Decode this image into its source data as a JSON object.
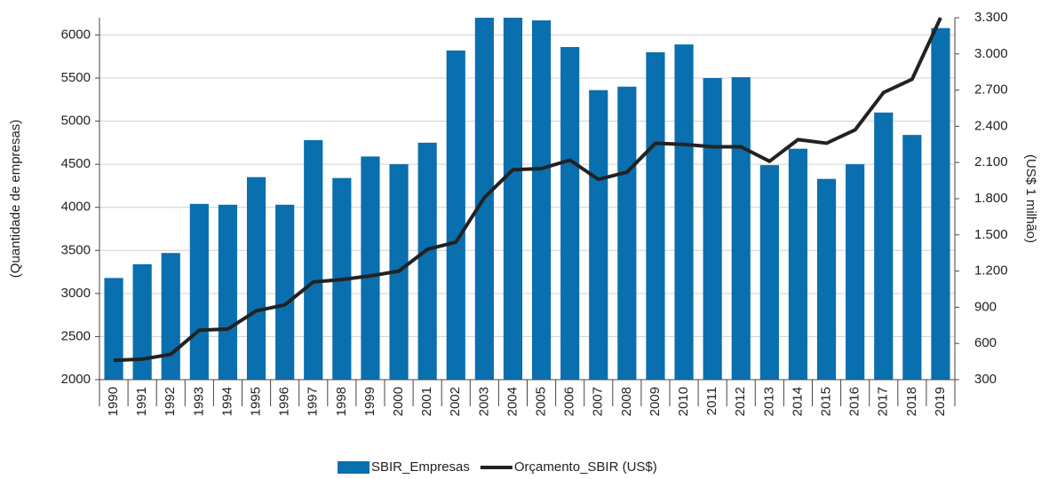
{
  "chart_data": {
    "type": "bar_line",
    "y_label": "(Quantidade de empresas)",
    "y2_label": "(US$ 1 milhão)",
    "categories": [
      "1990",
      "1991",
      "1992",
      "1993",
      "1994",
      "1995",
      "1996",
      "1997",
      "1998",
      "1999",
      "2000",
      "2001",
      "2002",
      "2003",
      "2004",
      "2005",
      "2006",
      "2007",
      "2008",
      "2009",
      "2010",
      "2011",
      "2012",
      "2013",
      "2014",
      "2015",
      "2016",
      "2017",
      "2018",
      "2019"
    ],
    "series": [
      {
        "name": "SBIR_Empresas",
        "type": "bar",
        "color": "#0a6fae",
        "values": [
          3180,
          3340,
          3470,
          4040,
          4030,
          4350,
          4030,
          4780,
          4340,
          4590,
          4500,
          4750,
          5820,
          6200,
          6200,
          6170,
          5860,
          5360,
          5400,
          5800,
          5890,
          5500,
          5510,
          4490,
          4680,
          4330,
          4500,
          5100,
          4840,
          6080
        ]
      },
      {
        "name": "Orçamento_SBIR (US$)",
        "type": "line",
        "axis": "y2",
        "color": "#222222",
        "values": [
          460,
          470,
          510,
          710,
          720,
          870,
          920,
          1110,
          1130,
          1160,
          1200,
          1380,
          1440,
          1810,
          2040,
          2050,
          2120,
          1960,
          2020,
          2260,
          2250,
          2230,
          2230,
          2110,
          2290,
          2260,
          2370,
          2680,
          2790,
          3300
        ]
      }
    ],
    "ylim": [
      2000,
      6200
    ],
    "yticks": [
      2000,
      2500,
      3000,
      3500,
      4000,
      4500,
      5000,
      5500,
      6000
    ],
    "y2lim": [
      300,
      3300
    ],
    "y2ticks": [
      300,
      600,
      900,
      {
        "value": 1200,
        "label": "1.200"
      },
      {
        "value": 1500,
        "label": "1.500"
      },
      {
        "value": 1800,
        "label": "1.800"
      },
      {
        "value": 2100,
        "label": "2.100"
      },
      {
        "value": 2400,
        "label": "2.400"
      },
      {
        "value": 2700,
        "label": "2.700"
      },
      {
        "value": 3000,
        "label": "3.000"
      },
      {
        "value": 3300,
        "label": "3.300"
      }
    ],
    "grid": true,
    "legend": "bottom"
  }
}
